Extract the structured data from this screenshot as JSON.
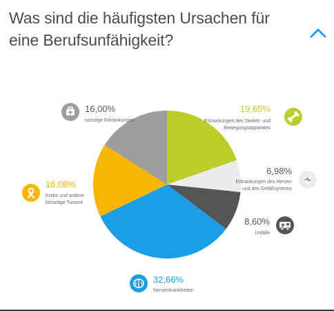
{
  "header": {
    "title": "Was sind die häufigsten Ursachen für eine Berufsunfähigkeit?",
    "collapse_icon": "chevron-up-icon",
    "accent_color": "#1aa3e8"
  },
  "chart_data": {
    "type": "pie",
    "title": "Was sind die häufigsten Ursachen für eine Berufsunfähigkeit?",
    "slices": [
      {
        "key": "skelett",
        "value": 19.65,
        "value_label": "19,65%",
        "label_lines": [
          "Erkrankungen des Skelett- und",
          "Bewegungsapparates"
        ],
        "color": "#bccc2b",
        "icon": "bone-icon"
      },
      {
        "key": "herz",
        "value": 6.98,
        "value_label": "6,98%",
        "label_lines": [
          "Erkrankungen des Herzen",
          "und des Gefäßsystems"
        ],
        "color": "#ececec",
        "icon": "heart-icon"
      },
      {
        "key": "unfaelle",
        "value": 8.6,
        "value_label": "8,60%",
        "label_lines": [
          "Unfälle"
        ],
        "color": "#555555",
        "icon": "ambulance-icon"
      },
      {
        "key": "nerven",
        "value": 32.66,
        "value_label": "32,66%",
        "label_lines": [
          "Nervenkrankheiten"
        ],
        "color": "#1c9ee6",
        "icon": "brain-icon"
      },
      {
        "key": "krebs",
        "value": 16.08,
        "value_label": "16,08%",
        "label_lines": [
          "Krebs und andere",
          "bösartige Tumore"
        ],
        "color": "#f7b400",
        "icon": "cancer-ribbon-icon"
      },
      {
        "key": "sonstige",
        "value": 16.0,
        "value_label": "16,00%",
        "label_lines": [
          "sonstige Erkrankungen"
        ],
        "color": "#9d9d9d",
        "icon": "medical-kit-icon"
      }
    ]
  }
}
